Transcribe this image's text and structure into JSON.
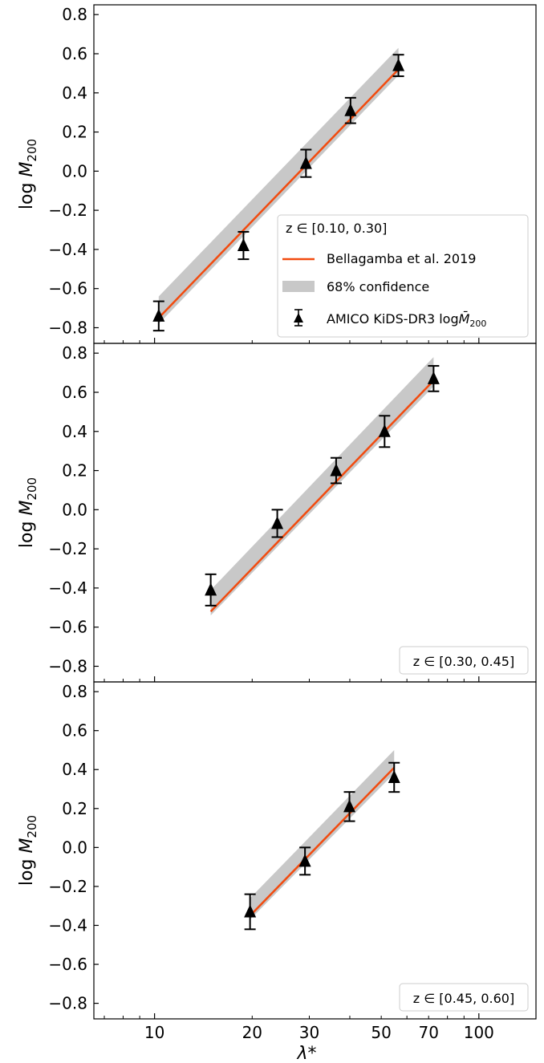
{
  "colors": {
    "model_line": "#f24b0f",
    "band": "#c8c8c8",
    "points": "#000000"
  },
  "chart_data": [
    {
      "type": "line",
      "panel": "top",
      "ylabel_main": "log",
      "ylabel_sub": "200",
      "ylim": [
        -0.88,
        0.85
      ],
      "yticks": [
        "0.8",
        "0.6",
        "0.4",
        "0.2",
        "0.0",
        "−0.2",
        "−0.4",
        "−0.6",
        "−0.8"
      ],
      "ytick_values": [
        0.8,
        0.6,
        0.4,
        0.2,
        0.0,
        -0.2,
        -0.4,
        -0.6,
        -0.8
      ],
      "xscale": "log",
      "xlim": [
        6.5,
        150
      ],
      "annotation": "z ∈ [0.10, 0.30]",
      "legend_placement": "lower-right",
      "legend": {
        "line_label": "Bellagamba et al. 2019",
        "band_label": "68% confidence",
        "points_label": "AMICO KiDS-DR3 log",
        "points_label_sub": "200"
      },
      "model_line": {
        "x": [
          10.3,
          56.5
        ],
        "y": [
          -0.75,
          0.52
        ]
      },
      "band": {
        "x": [
          10.3,
          56.5
        ],
        "upper": [
          -0.64,
          0.63
        ],
        "lower": [
          -0.78,
          0.49
        ]
      },
      "points": [
        {
          "x": 10.3,
          "y": -0.74,
          "err": 0.075
        },
        {
          "x": 18.8,
          "y": -0.38,
          "err": 0.07
        },
        {
          "x": 29.3,
          "y": 0.04,
          "err": 0.07
        },
        {
          "x": 40.2,
          "y": 0.31,
          "err": 0.065
        },
        {
          "x": 56.5,
          "y": 0.54,
          "err": 0.055
        }
      ]
    },
    {
      "type": "line",
      "panel": "middle",
      "ylabel_main": "log",
      "ylabel_sub": "200",
      "ylim": [
        -0.88,
        0.85
      ],
      "yticks": [
        "0.8",
        "0.6",
        "0.4",
        "0.2",
        "0.0",
        "−0.2",
        "−0.4",
        "−0.6",
        "−0.8"
      ],
      "ytick_values": [
        0.8,
        0.6,
        0.4,
        0.2,
        0.0,
        -0.2,
        -0.4,
        -0.6,
        -0.8
      ],
      "xscale": "log",
      "xlim": [
        6.5,
        150
      ],
      "annotation": "z ∈ [0.30, 0.45]",
      "model_line": {
        "x": [
          14.9,
          72.5
        ],
        "y": [
          -0.52,
          0.66
        ]
      },
      "band": {
        "x": [
          14.9,
          72.5
        ],
        "upper": [
          -0.41,
          0.78
        ],
        "lower": [
          -0.54,
          0.63
        ]
      },
      "points": [
        {
          "x": 14.9,
          "y": -0.41,
          "err": 0.08
        },
        {
          "x": 23.9,
          "y": -0.07,
          "err": 0.07
        },
        {
          "x": 36.3,
          "y": 0.2,
          "err": 0.065
        },
        {
          "x": 51.2,
          "y": 0.4,
          "err": 0.08
        },
        {
          "x": 72.5,
          "y": 0.67,
          "err": 0.065
        }
      ]
    },
    {
      "type": "line",
      "panel": "bottom",
      "ylabel_main": "log",
      "ylabel_sub": "200",
      "ylim": [
        -0.88,
        0.85
      ],
      "yticks": [
        "0.8",
        "0.6",
        "0.4",
        "0.2",
        "0.0",
        "−0.2",
        "−0.4",
        "−0.6",
        "−0.8"
      ],
      "ytick_values": [
        0.8,
        0.6,
        0.4,
        0.2,
        0.0,
        -0.2,
        -0.4,
        -0.6,
        -0.8
      ],
      "xscale": "log",
      "xlim": [
        6.5,
        150
      ],
      "xticks": [
        "10",
        "20",
        "30",
        "50",
        "70",
        "100"
      ],
      "xtick_values": [
        10,
        20,
        30,
        50,
        70,
        100
      ],
      "xlabel": "λ*",
      "annotation": "z ∈ [0.45, 0.60]",
      "model_line": {
        "x": [
          19.7,
          54.8
        ],
        "y": [
          -0.35,
          0.41
        ]
      },
      "band": {
        "x": [
          19.7,
          54.8
        ],
        "upper": [
          -0.26,
          0.5
        ],
        "lower": [
          -0.37,
          0.38
        ]
      },
      "points": [
        {
          "x": 19.7,
          "y": -0.33,
          "err": 0.09
        },
        {
          "x": 29.1,
          "y": -0.07,
          "err": 0.07
        },
        {
          "x": 39.9,
          "y": 0.21,
          "err": 0.075
        },
        {
          "x": 54.8,
          "y": 0.36,
          "err": 0.075
        }
      ]
    }
  ]
}
